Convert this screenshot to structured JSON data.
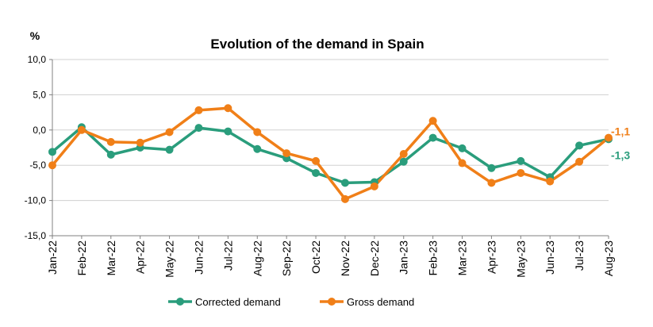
{
  "chart_data": {
    "type": "line",
    "title": "Evolution of the demand in Spain",
    "unit_label": "%",
    "categories": [
      "Jan-22",
      "Feb-22",
      "Mar-22",
      "Apr-22",
      "May-22",
      "Jun-22",
      "Jul-22",
      "Aug-22",
      "Sep-22",
      "Oct-22",
      "Nov-22",
      "Dec-22",
      "Jan-23",
      "Feb-23",
      "Mar-23",
      "Apr-23",
      "May-23",
      "Jun-23",
      "Jul-23",
      "Aug-23"
    ],
    "ylim": [
      -15,
      10
    ],
    "yticks": [
      10,
      5,
      0,
      -5,
      -10,
      -15
    ],
    "ytick_labels": [
      "10,0",
      "5,0",
      "0,0",
      "-5,0",
      "-10,0",
      "-15,0"
    ],
    "grid": true,
    "legend_position": "bottom",
    "series": [
      {
        "name": "Corrected demand",
        "color": "#2a9d7c",
        "values": [
          -3.1,
          0.4,
          -3.5,
          -2.5,
          -2.8,
          0.3,
          -0.2,
          -2.7,
          -4.0,
          -6.1,
          -7.5,
          -7.4,
          -4.5,
          -1.1,
          -2.6,
          -5.4,
          -4.4,
          -6.7,
          -2.2,
          -1.3
        ],
        "end_label": "-1,3"
      },
      {
        "name": "Gross demand",
        "color": "#f07f18",
        "values": [
          -5.0,
          0.0,
          -1.7,
          -1.8,
          -0.3,
          2.8,
          3.1,
          -0.3,
          -3.3,
          -4.4,
          -9.8,
          -8.0,
          -3.4,
          1.3,
          -4.7,
          -7.5,
          -6.1,
          -7.3,
          -4.5,
          -1.1
        ],
        "end_label": "-1,1"
      }
    ]
  }
}
